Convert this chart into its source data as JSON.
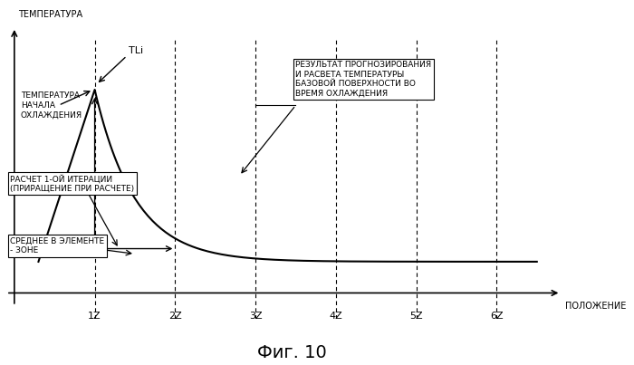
{
  "title": "Фиг. 10",
  "x_label": "ПОЛОЖЕНИЕ",
  "y_label": "ТЕМПЕРАТУРА",
  "x_ticks": [
    1,
    2,
    3,
    4,
    5,
    6
  ],
  "x_tick_labels": [
    "1Z",
    "2Z",
    "3Z",
    "4Z",
    "5Z",
    "6Z"
  ],
  "dashed_lines_x": [
    1,
    2,
    3,
    4,
    5,
    6
  ],
  "bg_color": "#ffffff",
  "line_color": "#000000",
  "annotation_TLi": "TLi",
  "annotation_temp_start": "ТЕМПЕРАТУРА\nНАЧАЛА\nОХЛАЖДЕНИЯ",
  "annotation_calc": "РАСЧЕТ 1-ОЙ ИТЕРАЦИИ\n(ПРИРАЩЕНИЕ ПРИ РАСЧЕТЕ)",
  "annotation_avg": "СРЕДНЕЕ В ЭЛЕМЕНТЕ\n- ЗОНЕ",
  "annotation_result": "РЕЗУЛЬТАТ ПРОГНОЗИРОВАНИЯ\nИ РАСВЕТА ТЕМПЕРАТУРЫ\nБАЗОВОЙ ПОВЕРХНОСТИ ВО\nВРЕМЯ ОХЛАЖДЕНИЯ"
}
